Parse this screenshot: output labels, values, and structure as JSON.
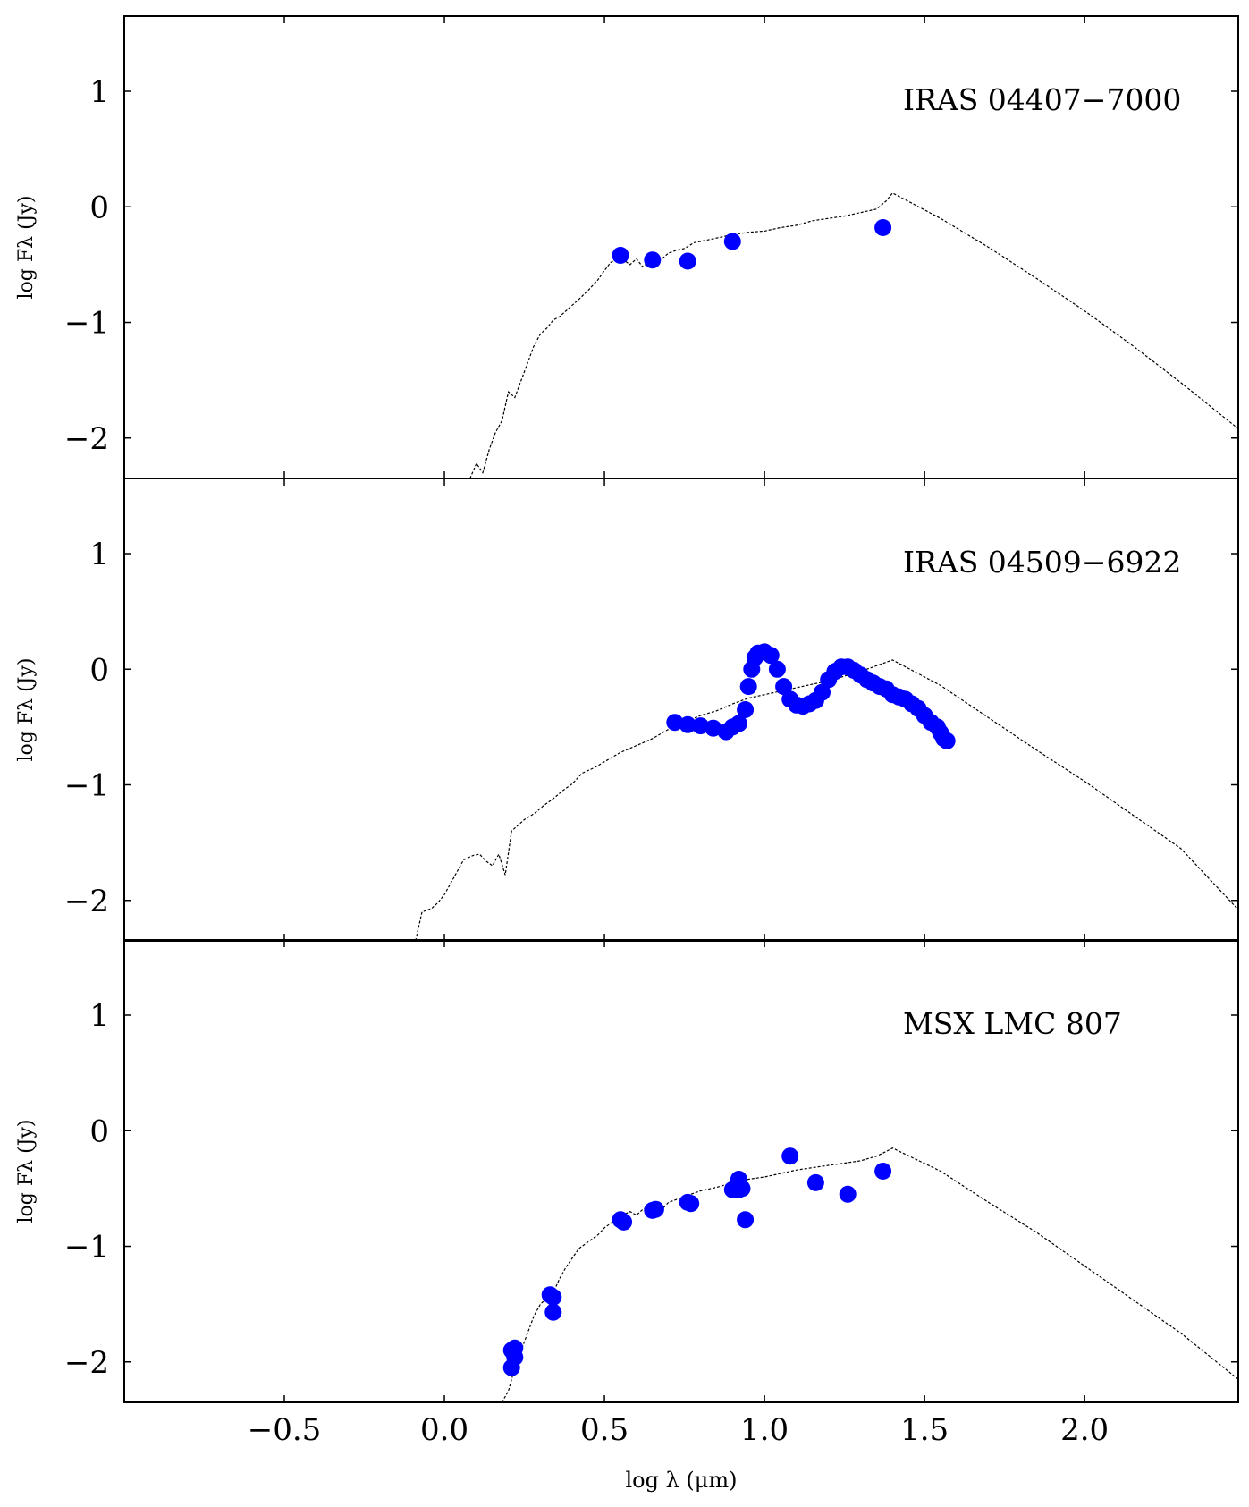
{
  "figure": {
    "xlabel": "log λ (μm)",
    "x_ticks": [
      {
        "value": -0.5,
        "label": "−0.5"
      },
      {
        "value": 0.0,
        "label": "0.0"
      },
      {
        "value": 0.5,
        "label": "0.5"
      },
      {
        "value": 1.0,
        "label": "1.0"
      },
      {
        "value": 1.5,
        "label": "1.5"
      },
      {
        "value": 2.0,
        "label": "2.0"
      }
    ],
    "y_ticks": [
      {
        "value": 1,
        "label": "1"
      },
      {
        "value": 0,
        "label": "0"
      },
      {
        "value": -1,
        "label": "−1"
      },
      {
        "value": -2,
        "label": "−2"
      }
    ]
  },
  "chart_data": [
    {
      "type": "scatter",
      "title": "IRAS 04407−7000",
      "ylabel": "log Fλ (Jy)",
      "xlim": [
        -1.0,
        2.48
      ],
      "ylim": [
        -2.35,
        1.65
      ],
      "grid": false,
      "legend": "none",
      "series": [
        {
          "kind": "points",
          "color": "#0000ff",
          "x": [
            0.55,
            0.65,
            0.76,
            0.9,
            1.37
          ],
          "y": [
            -0.42,
            -0.46,
            -0.47,
            -0.3,
            -0.18
          ]
        },
        {
          "kind": "dashed-line",
          "color": "#000000",
          "x": [
            0.08,
            0.1,
            0.12,
            0.14,
            0.16,
            0.18,
            0.2,
            0.22,
            0.24,
            0.26,
            0.28,
            0.3,
            0.32,
            0.34,
            0.36,
            0.38,
            0.4,
            0.42,
            0.45,
            0.48,
            0.5,
            0.52,
            0.55,
            0.58,
            0.6,
            0.62,
            0.64,
            0.66,
            0.68,
            0.7,
            0.72,
            0.75,
            0.78,
            0.8,
            0.85,
            0.9,
            0.95,
            1.0,
            1.05,
            1.1,
            1.15,
            1.2,
            1.25,
            1.3,
            1.35,
            1.38,
            1.4,
            1.55,
            1.7,
            1.85,
            2.0,
            2.15,
            2.3,
            2.48
          ],
          "y": [
            -2.35,
            -2.22,
            -2.3,
            -2.1,
            -1.95,
            -1.85,
            -1.6,
            -1.65,
            -1.5,
            -1.35,
            -1.2,
            -1.1,
            -1.05,
            -0.98,
            -0.95,
            -0.9,
            -0.85,
            -0.8,
            -0.72,
            -0.63,
            -0.55,
            -0.48,
            -0.44,
            -0.5,
            -0.45,
            -0.52,
            -0.47,
            -0.42,
            -0.45,
            -0.4,
            -0.38,
            -0.36,
            -0.31,
            -0.3,
            -0.27,
            -0.24,
            -0.22,
            -0.21,
            -0.18,
            -0.16,
            -0.12,
            -0.1,
            -0.08,
            -0.05,
            -0.02,
            0.05,
            0.12,
            -0.1,
            -0.35,
            -0.62,
            -0.9,
            -1.2,
            -1.52,
            -1.92
          ]
        }
      ]
    },
    {
      "type": "scatter",
      "title": "IRAS 04509−6922",
      "ylabel": "log Fλ (Jy)",
      "xlim": [
        -1.0,
        2.48
      ],
      "ylim": [
        -2.35,
        1.65
      ],
      "grid": false,
      "legend": "none",
      "series": [
        {
          "kind": "points",
          "color": "#0000ff",
          "x": [
            0.72,
            0.76,
            0.8,
            0.84,
            0.88,
            0.9,
            0.92,
            0.94,
            0.95,
            0.96,
            0.97,
            0.98,
            1.0,
            1.02,
            1.04,
            1.06,
            1.08,
            1.1,
            1.12,
            1.14,
            1.16,
            1.18,
            1.2,
            1.22,
            1.24,
            1.26,
            1.28,
            1.3,
            1.32,
            1.34,
            1.36,
            1.38,
            1.4,
            1.42,
            1.44,
            1.46,
            1.48,
            1.5,
            1.52,
            1.54,
            1.55,
            1.56,
            1.57
          ],
          "y": [
            -0.46,
            -0.48,
            -0.49,
            -0.51,
            -0.54,
            -0.5,
            -0.47,
            -0.35,
            -0.15,
            0.0,
            0.1,
            0.14,
            0.15,
            0.12,
            0.0,
            -0.15,
            -0.26,
            -0.31,
            -0.32,
            -0.3,
            -0.27,
            -0.2,
            -0.09,
            -0.02,
            0.02,
            0.02,
            -0.01,
            -0.05,
            -0.09,
            -0.12,
            -0.15,
            -0.17,
            -0.22,
            -0.24,
            -0.26,
            -0.3,
            -0.34,
            -0.4,
            -0.46,
            -0.5,
            -0.55,
            -0.6,
            -0.62
          ]
        },
        {
          "kind": "dashed-line",
          "color": "#000000",
          "x": [
            -0.09,
            -0.07,
            -0.04,
            -0.02,
            0.0,
            0.03,
            0.06,
            0.09,
            0.11,
            0.13,
            0.15,
            0.17,
            0.19,
            0.21,
            0.23,
            0.25,
            0.28,
            0.31,
            0.34,
            0.37,
            0.4,
            0.43,
            0.47,
            0.5,
            0.55,
            0.6,
            0.65,
            0.7,
            0.75,
            0.8,
            0.85,
            0.9,
            0.95,
            1.0,
            1.1,
            1.2,
            1.3,
            1.4,
            1.55,
            1.7,
            1.85,
            2.0,
            2.15,
            2.3,
            2.48
          ],
          "y": [
            -2.35,
            -2.1,
            -2.07,
            -2.02,
            -1.95,
            -1.8,
            -1.65,
            -1.61,
            -1.6,
            -1.66,
            -1.7,
            -1.6,
            -1.78,
            -1.4,
            -1.35,
            -1.3,
            -1.25,
            -1.18,
            -1.12,
            -1.05,
            -0.99,
            -0.9,
            -0.85,
            -0.8,
            -0.72,
            -0.66,
            -0.6,
            -0.52,
            -0.46,
            -0.4,
            -0.36,
            -0.3,
            -0.25,
            -0.22,
            -0.16,
            -0.1,
            -0.02,
            0.08,
            -0.14,
            -0.42,
            -0.7,
            -0.97,
            -1.26,
            -1.55,
            -2.08
          ]
        }
      ]
    },
    {
      "type": "scatter",
      "title": "MSX LMC 807",
      "ylabel": "log Fλ (Jy)",
      "xlim": [
        -1.0,
        2.48
      ],
      "ylim": [
        -2.35,
        1.65
      ],
      "grid": false,
      "legend": "none",
      "series": [
        {
          "kind": "points",
          "color": "#0000ff",
          "x": [
            0.21,
            0.22,
            0.21,
            0.22,
            0.33,
            0.34,
            0.34,
            0.55,
            0.56,
            0.65,
            0.66,
            0.76,
            0.77,
            0.9,
            0.92,
            0.92,
            0.93,
            0.94,
            1.08,
            1.16,
            1.26,
            1.37
          ],
          "y": [
            -2.05,
            -1.96,
            -1.9,
            -1.88,
            -1.42,
            -1.44,
            -1.57,
            -0.77,
            -0.79,
            -0.69,
            -0.68,
            -0.62,
            -0.63,
            -0.51,
            -0.51,
            -0.42,
            -0.5,
            -0.77,
            -0.22,
            -0.45,
            -0.55,
            -0.35
          ]
        },
        {
          "kind": "dashed-line",
          "color": "#000000",
          "x": [
            0.18,
            0.2,
            0.22,
            0.24,
            0.26,
            0.28,
            0.3,
            0.32,
            0.34,
            0.36,
            0.38,
            0.4,
            0.42,
            0.45,
            0.48,
            0.5,
            0.52,
            0.55,
            0.58,
            0.6,
            0.62,
            0.65,
            0.68,
            0.7,
            0.72,
            0.75,
            0.78,
            0.8,
            0.85,
            0.9,
            0.95,
            1.0,
            1.05,
            1.1,
            1.15,
            1.2,
            1.25,
            1.3,
            1.35,
            1.38,
            1.4,
            1.55,
            1.7,
            1.85,
            2.0,
            2.15,
            2.3,
            2.48
          ],
          "y": [
            -2.35,
            -2.25,
            -2.05,
            -1.9,
            -1.75,
            -1.6,
            -1.5,
            -1.45,
            -1.4,
            -1.28,
            -1.18,
            -1.1,
            -1.02,
            -0.96,
            -0.9,
            -0.84,
            -0.8,
            -0.74,
            -0.7,
            -0.73,
            -0.68,
            -0.64,
            -0.68,
            -0.62,
            -0.6,
            -0.57,
            -0.54,
            -0.52,
            -0.49,
            -0.45,
            -0.42,
            -0.4,
            -0.37,
            -0.34,
            -0.32,
            -0.3,
            -0.28,
            -0.26,
            -0.22,
            -0.18,
            -0.15,
            -0.35,
            -0.62,
            -0.88,
            -1.17,
            -1.46,
            -1.75,
            -2.15
          ]
        }
      ]
    }
  ]
}
